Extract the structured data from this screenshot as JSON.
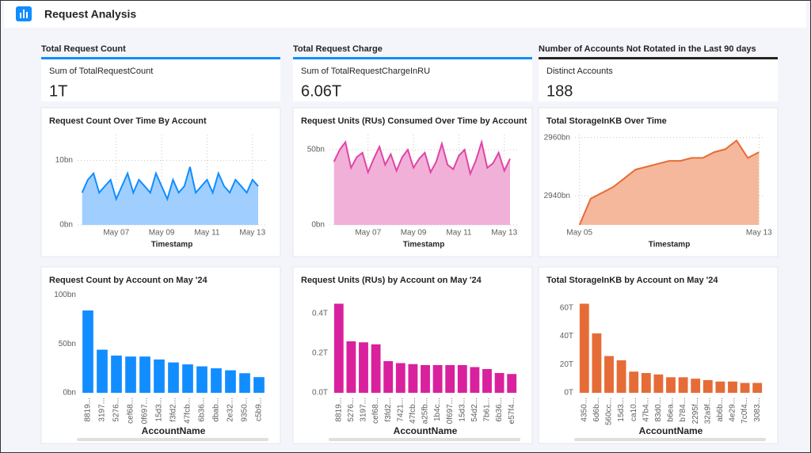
{
  "header": {
    "title": "Request Analysis"
  },
  "kpis": [
    {
      "section": "Total Request Count",
      "label": "Sum of TotalRequestCount",
      "value": "1T",
      "color": "#118dff"
    },
    {
      "section": "Total Request Charge",
      "label": "Sum of TotalRequestChargeInRU",
      "value": "6.06T",
      "color": "#118dff"
    },
    {
      "section": "Number of Accounts Not Rotated in the Last 90 days",
      "label": "Distinct Accounts",
      "value": "188",
      "color": "#252423"
    }
  ],
  "chart_data": [
    {
      "type": "area",
      "title": "Request Count Over Time By Account",
      "x_label": "Timestamp",
      "color": "#118dff",
      "fill_color": "#a0cfff",
      "grid": true,
      "x": [
        5.5,
        5.75,
        6,
        6.25,
        6.5,
        6.75,
        7,
        7.25,
        7.5,
        7.75,
        8,
        8.25,
        8.5,
        8.75,
        9,
        9.25,
        9.5,
        9.75,
        10,
        10.25,
        10.5,
        10.75,
        11,
        11.25,
        11.5,
        11.75,
        12,
        12.25,
        12.5,
        12.75,
        13,
        13.25
      ],
      "values": [
        5,
        7,
        8,
        5,
        6,
        7,
        4,
        6,
        8,
        5,
        7,
        6,
        5,
        8,
        6,
        4,
        7,
        5,
        6,
        9,
        5,
        6,
        7,
        5,
        8,
        6,
        5,
        7,
        6,
        5,
        7,
        6
      ],
      "xlim": [
        5.3,
        13.6
      ],
      "xticks": [
        {
          "value": 7,
          "label": "May 07"
        },
        {
          "value": 9,
          "label": "May 09"
        },
        {
          "value": 11,
          "label": "May 11"
        },
        {
          "value": 13,
          "label": "May 13"
        }
      ],
      "ylim": [
        0,
        14
      ],
      "yticks": [
        {
          "value": 0,
          "label": "0bn"
        },
        {
          "value": 10,
          "label": "10bn"
        }
      ]
    },
    {
      "type": "area",
      "title": "Request Units (RUs) Consumed Over Time by Account",
      "x_label": "Timestamp",
      "color": "#e044a7",
      "fill_color": "#f1b0d8",
      "grid": true,
      "x": [
        5.5,
        5.75,
        6,
        6.25,
        6.5,
        6.75,
        7,
        7.25,
        7.5,
        7.75,
        8,
        8.25,
        8.5,
        8.75,
        9,
        9.25,
        9.5,
        9.75,
        10,
        10.25,
        10.5,
        10.75,
        11,
        11.25,
        11.5,
        11.75,
        12,
        12.25,
        12.5,
        12.75,
        13,
        13.25
      ],
      "values": [
        42,
        50,
        55,
        38,
        45,
        48,
        35,
        44,
        52,
        40,
        47,
        36,
        45,
        50,
        38,
        44,
        48,
        35,
        42,
        54,
        40,
        37,
        46,
        50,
        34,
        43,
        55,
        38,
        41,
        48,
        36,
        44
      ],
      "xlim": [
        5.3,
        13.6
      ],
      "xticks": [
        {
          "value": 7,
          "label": "May 07"
        },
        {
          "value": 9,
          "label": "May 09"
        },
        {
          "value": 11,
          "label": "May 11"
        },
        {
          "value": 13,
          "label": "May 13"
        }
      ],
      "ylim": [
        0,
        60
      ],
      "yticks": [
        {
          "value": 0,
          "label": "0bn"
        },
        {
          "value": 50,
          "label": "50bn"
        }
      ]
    },
    {
      "type": "area",
      "title": "Total StorageInKB Over Time",
      "x_label": "Timestamp",
      "color": "#e66c37",
      "fill_color": "#f5b89c",
      "grid": true,
      "x": [
        5,
        5.5,
        6,
        6.5,
        7,
        7.5,
        8,
        8.5,
        9,
        9.5,
        10,
        10.5,
        11,
        11.5,
        12,
        12.5,
        13
      ],
      "values": [
        2930,
        2939,
        2941,
        2943,
        2946,
        2949,
        2950,
        2951,
        2952,
        2952,
        2953,
        2953,
        2955,
        2956,
        2959,
        2953,
        2955
      ],
      "xlim": [
        4.8,
        13.2
      ],
      "xticks": [
        {
          "value": 5,
          "label": "May 05"
        },
        {
          "value": 13,
          "label": "May 13"
        }
      ],
      "ylim": [
        2930,
        2961
      ],
      "yticks": [
        {
          "value": 2940,
          "label": "2940bn"
        },
        {
          "value": 2960,
          "label": "2960bn"
        }
      ]
    },
    {
      "type": "bar",
      "title": "Request Count by Account on May '24",
      "x_label": "AccountName",
      "color": "#118dff",
      "grid": false,
      "categories": [
        "8819...",
        "3197...",
        "5276...",
        "cef68...",
        "0f697...",
        "15d3...",
        "f3fd2...",
        "47fcb...",
        "6b36...",
        "dbab...",
        "2e32...",
        "9350...",
        "c5b9..."
      ],
      "values": [
        84,
        44,
        38,
        37,
        37,
        34,
        31,
        29,
        27,
        25,
        23,
        20,
        16
      ],
      "ylim": [
        0,
        101
      ],
      "yticks": [
        {
          "value": 0,
          "label": "0bn"
        },
        {
          "value": 50,
          "label": "50bn"
        },
        {
          "value": 100,
          "label": "100bn"
        }
      ]
    },
    {
      "type": "bar",
      "title": "Request Units (RUs) by Account on May '24",
      "x_label": "AccountName",
      "color": "#d9219e",
      "grid": false,
      "categories": [
        "8819...",
        "5276...",
        "3197...",
        "cef68...",
        "f3fd2...",
        "7421...",
        "47fcb...",
        "a25fb...",
        "1b4c...",
        "0f697...",
        "15d3...",
        "54d2...",
        "7b61...",
        "6b36...",
        "e57f4..."
      ],
      "values": [
        0.45,
        0.26,
        0.255,
        0.245,
        0.16,
        0.15,
        0.145,
        0.14,
        0.14,
        0.14,
        0.14,
        0.13,
        0.12,
        0.1,
        0.095
      ],
      "ylim": [
        0,
        0.5
      ],
      "yticks": [
        {
          "value": 0,
          "label": "0.0T"
        },
        {
          "value": 0.2,
          "label": "0.2T"
        },
        {
          "value": 0.4,
          "label": "0.4T"
        }
      ]
    },
    {
      "type": "bar",
      "title": "Total StorageInKB by Account on May '24",
      "x_label": "AccountName",
      "color": "#e66c37",
      "grid": false,
      "categories": [
        "4350...",
        "6d6b...",
        "560cc...",
        "15d3...",
        "ca10...",
        "47b4...",
        "83d0...",
        "b6ea...",
        "b784...",
        "2295f...",
        "32a9f...",
        "ab6b...",
        "4e29...",
        "7c0f4...",
        "3083..."
      ],
      "values": [
        63,
        42,
        26,
        23,
        15,
        14,
        13,
        11,
        11,
        10,
        9,
        8,
        8,
        7,
        7
      ],
      "ylim": [
        0,
        70
      ],
      "yticks": [
        {
          "value": 0,
          "label": "0T"
        },
        {
          "value": 20,
          "label": "20T"
        },
        {
          "value": 40,
          "label": "40T"
        },
        {
          "value": 60,
          "label": "60T"
        }
      ]
    }
  ]
}
